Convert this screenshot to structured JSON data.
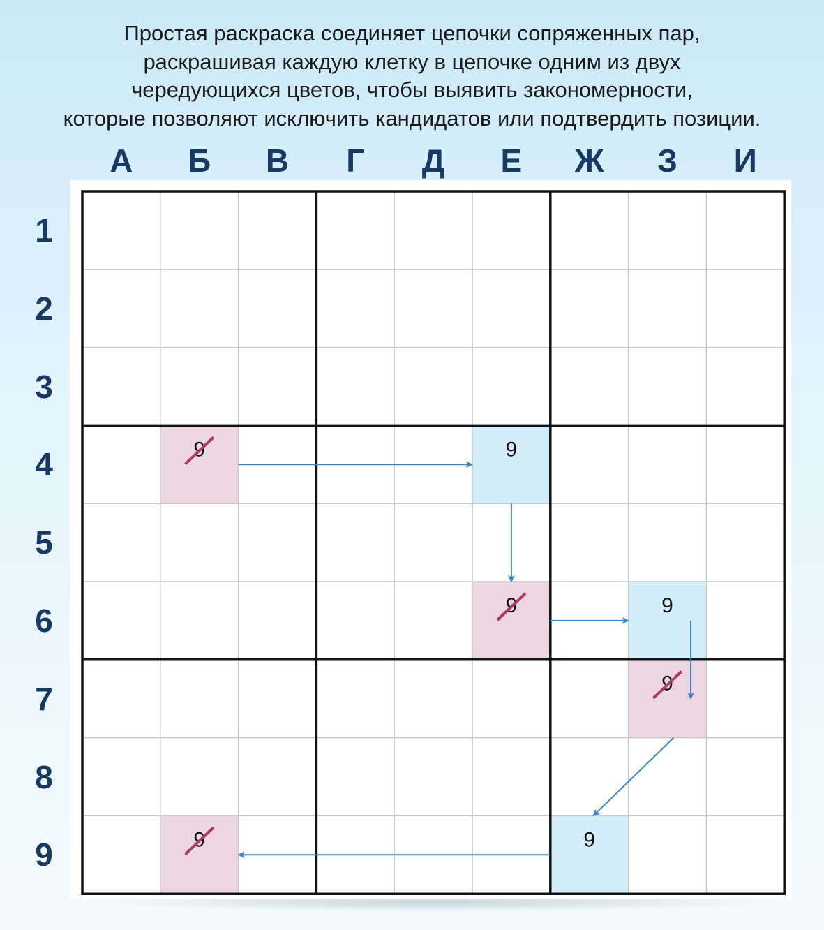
{
  "caption": [
    "Простая раскраска соединяет цепочки сопряженных пар,",
    "раскрашивая каждую клетку в цепочке одним из двух",
    "чередующихся цветов, чтобы выявить закономерности,",
    "которые позволяют исключить кандидатов или подтвердить позиции."
  ],
  "columns": [
    "А",
    "Б",
    "В",
    "Г",
    "Д",
    "Е",
    "Ж",
    "З",
    "И"
  ],
  "rows": [
    "1",
    "2",
    "3",
    "4",
    "5",
    "6",
    "7",
    "8",
    "9"
  ],
  "colors": {
    "pink": "#ecd6e2",
    "blue": "#d4eef9",
    "arrow": "#3c86c7",
    "strike": "#a93a62",
    "thin_grid": "#c8c8c8",
    "thick_grid": "#111111",
    "label": "#163a63"
  },
  "cells": [
    {
      "col": 1,
      "row": 3,
      "color": "pink",
      "digit": "9",
      "struck": true
    },
    {
      "col": 5,
      "row": 3,
      "color": "blue",
      "digit": "9",
      "struck": false
    },
    {
      "col": 5,
      "row": 5,
      "color": "pink",
      "digit": "9",
      "struck": true
    },
    {
      "col": 7,
      "row": 5,
      "color": "blue",
      "digit": "9",
      "struck": false
    },
    {
      "col": 7,
      "row": 6,
      "color": "pink",
      "digit": "9",
      "struck": true
    },
    {
      "col": 6,
      "row": 8,
      "color": "blue",
      "digit": "9",
      "struck": false
    },
    {
      "col": 1,
      "row": 8,
      "color": "pink",
      "digit": "9",
      "struck": true
    }
  ],
  "links": [
    {
      "from": [
        1,
        3
      ],
      "to": [
        5,
        3
      ]
    },
    {
      "from": [
        5,
        3
      ],
      "to": [
        5,
        5
      ]
    },
    {
      "from": [
        5,
        5
      ],
      "to": [
        7,
        5
      ]
    },
    {
      "from": [
        7,
        5
      ],
      "to": [
        7,
        6
      ]
    },
    {
      "from": [
        7,
        6
      ],
      "to": [
        6,
        8
      ]
    },
    {
      "from": [
        6,
        8
      ],
      "to": [
        1,
        8
      ]
    }
  ]
}
